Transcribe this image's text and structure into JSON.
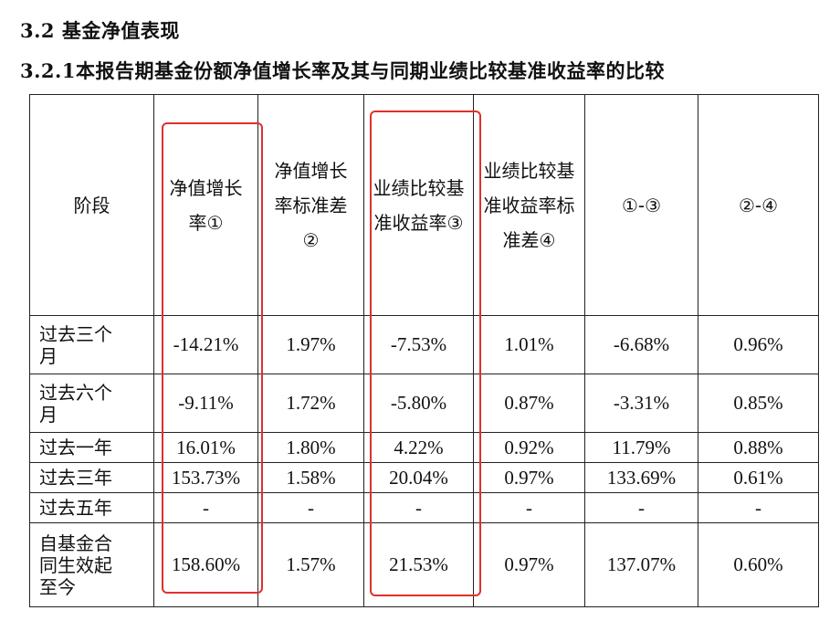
{
  "section_heading": "3.2 基金净值表现",
  "subsection_heading": "3.2.1本报告期基金份额净值增长率及其与同期业绩比较基准收益率的比较",
  "table": {
    "headers": [
      "阶段",
      "净值增长率①",
      "净值增长率标准差②",
      "业绩比较基准收益率③",
      "业绩比较基准收益率标准差④",
      "①-③",
      "②-④"
    ],
    "rows": [
      {
        "stage": "过去三个月",
        "cells": [
          "-14.21%",
          "1.97%",
          "-7.53%",
          "1.01%",
          "-6.68%",
          "0.96%"
        ]
      },
      {
        "stage": "过去六个月",
        "cells": [
          "-9.11%",
          "1.72%",
          "-5.80%",
          "0.87%",
          "-3.31%",
          "0.85%"
        ]
      },
      {
        "stage": "过去一年",
        "cells": [
          "16.01%",
          "1.80%",
          "4.22%",
          "0.92%",
          "11.79%",
          "0.88%"
        ]
      },
      {
        "stage": "过去三年",
        "cells": [
          "153.73%",
          "1.58%",
          "20.04%",
          "0.97%",
          "133.69%",
          "0.61%"
        ]
      },
      {
        "stage": "过去五年",
        "cells": [
          "-",
          "-",
          "-",
          "-",
          "-",
          "-"
        ]
      },
      {
        "stage": "自基金合同生效起至今",
        "cells": [
          "158.60%",
          "1.57%",
          "21.53%",
          "0.97%",
          "137.07%",
          "0.60%"
        ]
      }
    ]
  },
  "highlight_color": "#e0302a"
}
